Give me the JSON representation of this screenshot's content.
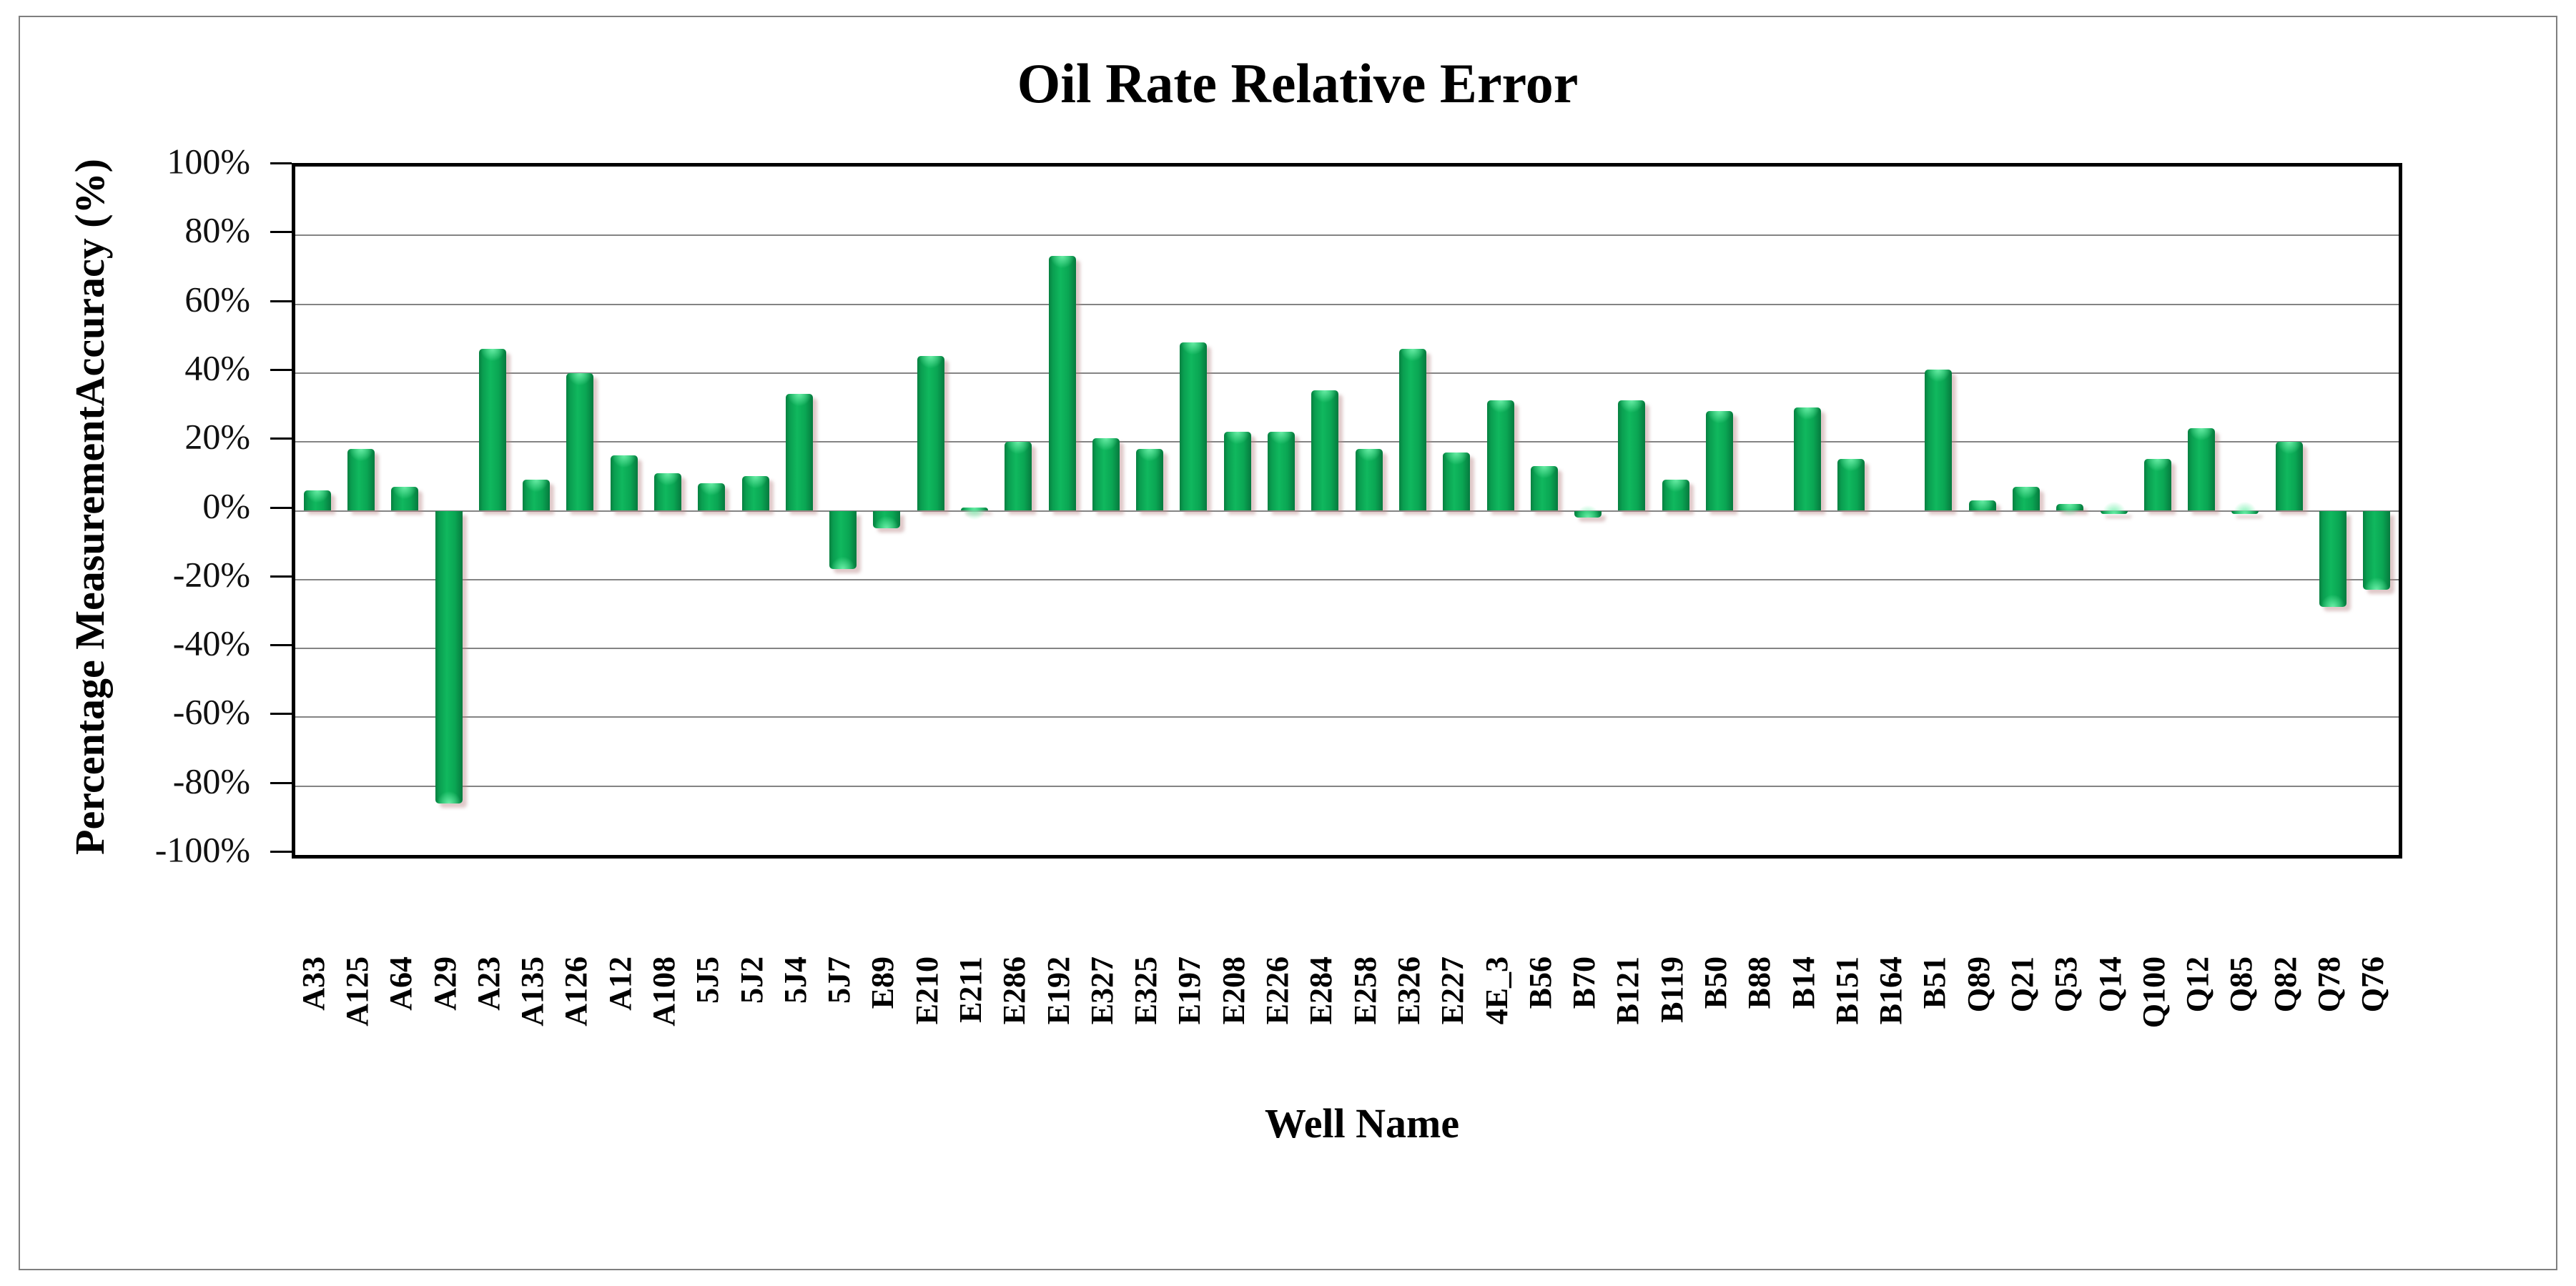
{
  "chart": {
    "title": "Oil Rate Relative Error",
    "ylabel": "Percentage MeasurementAccuracy (%)",
    "xlabel": "Well Name"
  },
  "chart_data": {
    "type": "bar",
    "title": "Oil Rate Relative Error",
    "xlabel": "Well Name",
    "ylabel": "Percentage MeasurementAccuracy (%)",
    "categories": [
      "A33",
      "A125",
      "A64",
      "A29",
      "A23",
      "A135",
      "A126",
      "A12",
      "A108",
      "5J5",
      "5J2",
      "5J4",
      "5J7",
      "E89",
      "E210",
      "E211",
      "E286",
      "E192",
      "E327",
      "E325",
      "E197",
      "E208",
      "E226",
      "E284",
      "E258",
      "E326",
      "E227",
      "4E_3",
      "B56",
      "B70",
      "B121",
      "B119",
      "B50",
      "B88",
      "B14",
      "B151",
      "B164",
      "B51",
      "Q89",
      "Q21",
      "Q53",
      "Q14",
      "Q100",
      "Q12",
      "Q85",
      "Q82",
      "Q78",
      "Q76"
    ],
    "values": [
      6,
      18,
      7,
      -85,
      47,
      9,
      40,
      16,
      11,
      8,
      10,
      34,
      -17,
      -5,
      45,
      1,
      20,
      74,
      21,
      18,
      49,
      23,
      23,
      35,
      18,
      47,
      17,
      32,
      13,
      -2,
      32,
      9,
      29,
      0,
      30,
      15,
      0,
      41,
      3,
      7,
      2,
      -1,
      15,
      24,
      -1,
      20,
      -28,
      -23
    ],
    "value_unit": "%",
    "ylim": [
      -100,
      100
    ],
    "ytick_percent": [
      100,
      80,
      60,
      40,
      20,
      0,
      -20,
      -40,
      -60,
      -80,
      -100
    ],
    "ytick_labels": [
      "100%",
      "80%",
      "60%",
      "40%",
      "20%",
      "0%",
      "-20%",
      "-40%",
      "-60%",
      "-80%",
      "-100%"
    ],
    "grid": true,
    "legend": false,
    "bar_color": "#0aa653",
    "bar_edge_color": "#067a3e",
    "bar_highlight_color": "#6ef0aa",
    "gridline_color": "#848484",
    "axis_color": "#000000",
    "background_color": "#ffffff"
  }
}
